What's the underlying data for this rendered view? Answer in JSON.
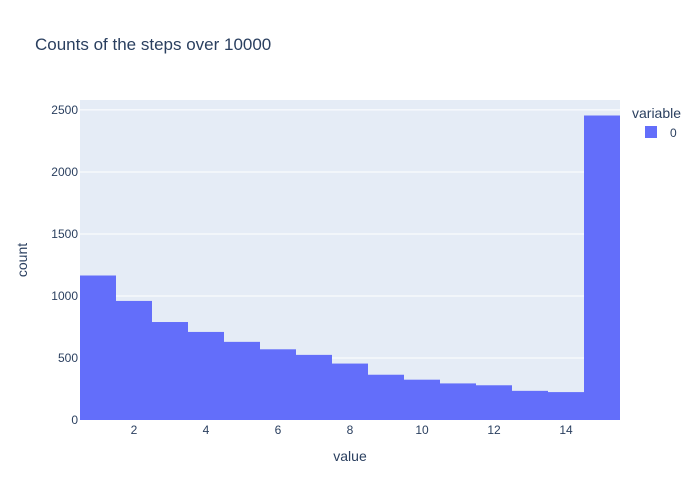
{
  "chart_data": {
    "type": "bar",
    "title": "Counts of the steps over 10000",
    "xlabel": "value",
    "ylabel": "count",
    "legend": {
      "title": "variable",
      "position": "top-right"
    },
    "series": [
      {
        "name": "0",
        "color": "#636efa",
        "x": [
          1,
          2,
          3,
          4,
          5,
          6,
          7,
          8,
          9,
          10,
          11,
          12,
          13,
          14,
          15
        ],
        "values": [
          1165,
          960,
          790,
          710,
          630,
          570,
          525,
          455,
          365,
          325,
          295,
          280,
          235,
          225,
          2455
        ]
      }
    ],
    "xlim": [
      0.5,
      15.5
    ],
    "ylim": [
      0,
      2580
    ],
    "x_ticks": [
      2,
      4,
      6,
      8,
      10,
      12,
      14
    ],
    "y_ticks": [
      0,
      500,
      1000,
      1500,
      2000,
      2500
    ],
    "grid": true,
    "plot_bg": "#e5ecf6",
    "text_color": "#2a3f5f"
  }
}
